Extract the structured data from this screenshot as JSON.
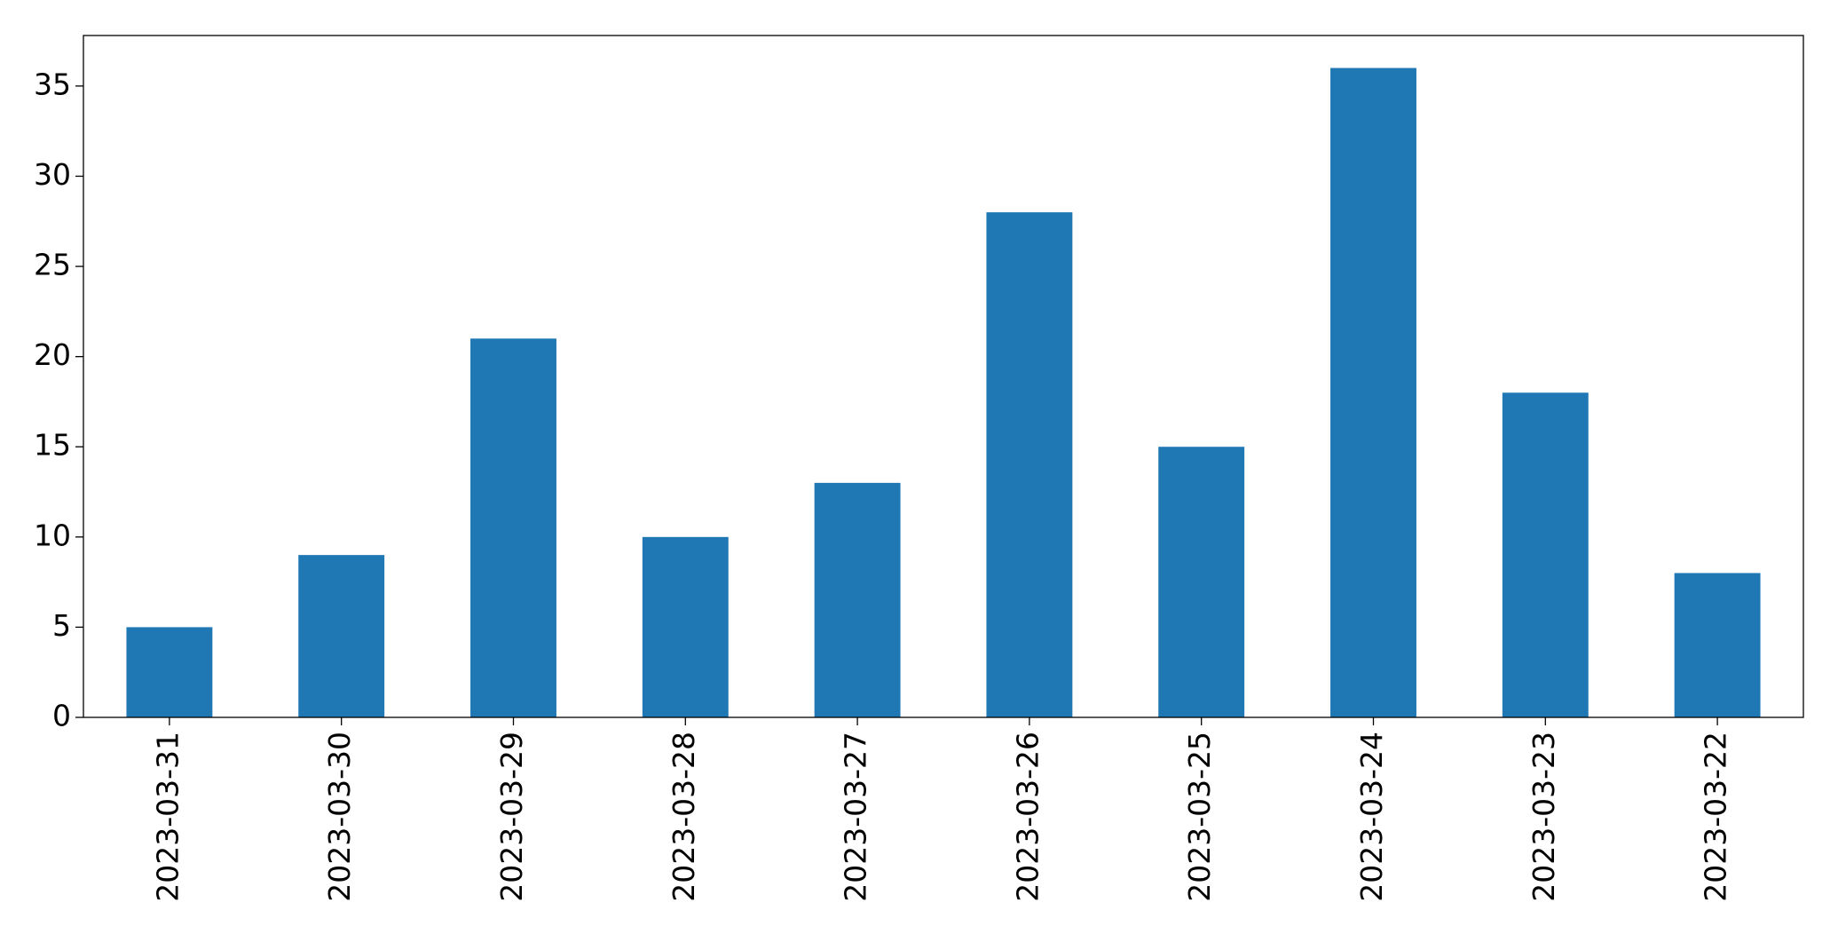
{
  "chart_data": {
    "type": "bar",
    "categories": [
      "2023-03-31",
      "2023-03-30",
      "2023-03-29",
      "2023-03-28",
      "2023-03-27",
      "2023-03-26",
      "2023-03-25",
      "2023-03-24",
      "2023-03-23",
      "2023-03-22"
    ],
    "values": [
      5,
      9,
      21,
      10,
      13,
      28,
      15,
      36,
      18,
      8
    ],
    "color": "#1f77b4",
    "ylim": [
      0,
      37.8
    ],
    "yticks": [
      0,
      5,
      10,
      15,
      20,
      25,
      30,
      35
    ],
    "grid": false
  }
}
